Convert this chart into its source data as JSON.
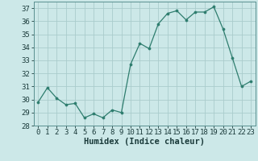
{
  "x": [
    0,
    1,
    2,
    3,
    4,
    5,
    6,
    7,
    8,
    9,
    10,
    11,
    12,
    13,
    14,
    15,
    16,
    17,
    18,
    19,
    20,
    21,
    22,
    23
  ],
  "y": [
    29.8,
    30.9,
    30.1,
    29.6,
    29.7,
    28.6,
    28.9,
    28.6,
    29.2,
    29.0,
    32.7,
    34.3,
    33.9,
    35.8,
    36.6,
    36.8,
    36.1,
    36.7,
    36.7,
    37.1,
    35.4,
    33.2,
    31.0,
    31.4
  ],
  "xlabel": "Humidex (Indice chaleur)",
  "line_color": "#2e7d6e",
  "marker_color": "#2e7d6e",
  "bg_color": "#cce8e8",
  "grid_color": "#aacccc",
  "ylim": [
    28,
    37.5
  ],
  "xlim": [
    -0.5,
    23.5
  ],
  "yticks": [
    28,
    29,
    30,
    31,
    32,
    33,
    34,
    35,
    36,
    37
  ],
  "xticks": [
    0,
    1,
    2,
    3,
    4,
    5,
    6,
    7,
    8,
    9,
    10,
    11,
    12,
    13,
    14,
    15,
    16,
    17,
    18,
    19,
    20,
    21,
    22,
    23
  ],
  "tick_fontsize": 6.5,
  "xlabel_fontsize": 7.5
}
